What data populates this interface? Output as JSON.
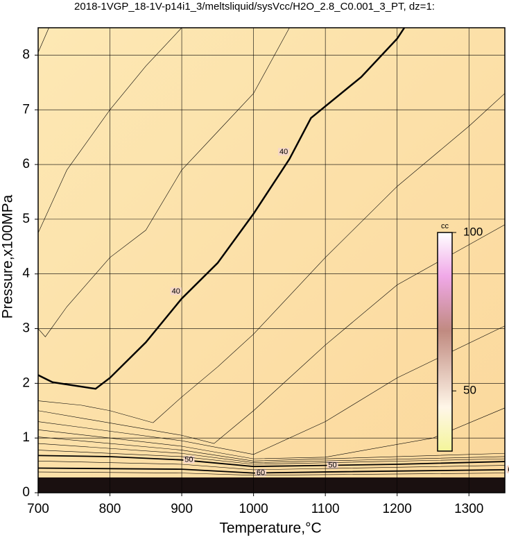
{
  "chart_data": {
    "type": "contour",
    "title": "2018-1VGP_18-1V-p14i1_3/meltsliquid/sysVcc/H2O_2.8_C0.001_3_PT, dz=1:",
    "xlabel": "Temperature,°C",
    "ylabel": "Pressure,x100MPa",
    "xlim": [
      700,
      1350
    ],
    "ylim": [
      0,
      8.5
    ],
    "xticks": [
      700,
      800,
      900,
      1000,
      1100,
      1200,
      1300
    ],
    "yticks": [
      0,
      1,
      2,
      3,
      4,
      5,
      6,
      7,
      8
    ],
    "grid": true,
    "colorbar": {
      "label": "cc",
      "lim": [
        31,
        100
      ],
      "ticks": [
        50,
        100
      ]
    },
    "contours": [
      {
        "level": 40,
        "x": [
          700,
          720,
          780,
          800,
          850,
          900,
          950,
          1000,
          1050,
          1080,
          1150,
          1200,
          1210
        ],
        "y": [
          2.15,
          2.02,
          1.9,
          2.1,
          2.75,
          3.55,
          4.2,
          5.1,
          6.1,
          6.85,
          7.6,
          8.3,
          8.5
        ]
      },
      {
        "level": 50,
        "x": [
          700,
          800,
          900,
          1000,
          1100,
          1200,
          1350
        ],
        "y": [
          0.68,
          0.66,
          0.6,
          0.48,
          0.5,
          0.52,
          0.57
        ]
      },
      {
        "level": 60,
        "x": [
          700,
          900,
          1000,
          1100,
          1350
        ],
        "y": [
          0.45,
          0.43,
          0.36,
          0.38,
          0.42
        ]
      },
      {
        "x": [
          700,
          715
        ],
        "y": [
          8.05,
          8.5
        ]
      },
      {
        "x": [
          700,
          740,
          800,
          850,
          900
        ],
        "y": [
          4.75,
          5.9,
          7.0,
          7.8,
          8.5
        ]
      },
      {
        "x": [
          700,
          710,
          740,
          800,
          850,
          900,
          950,
          1000,
          1050
        ],
        "y": [
          3.0,
          2.85,
          3.4,
          4.3,
          4.8,
          5.9,
          6.6,
          7.3,
          8.5
        ]
      },
      {
        "x": [
          860,
          900,
          950,
          1000,
          1100,
          1200,
          1300,
          1350
        ],
        "y": [
          1.28,
          1.75,
          2.3,
          2.9,
          4.3,
          5.6,
          6.7,
          7.3
        ]
      },
      {
        "x": [
          700,
          760,
          800,
          860
        ],
        "y": [
          1.68,
          1.6,
          1.5,
          1.28
        ]
      },
      {
        "x": [
          700,
          900,
          945,
          1000,
          1100,
          1200,
          1350
        ],
        "y": [
          1.5,
          1.05,
          0.9,
          1.5,
          2.7,
          3.8,
          4.9
        ]
      },
      {
        "x": [
          700,
          900,
          1000,
          1100,
          1200,
          1350
        ],
        "y": [
          1.3,
          0.95,
          0.7,
          1.3,
          2.1,
          3.05
        ]
      },
      {
        "x": [
          700,
          900,
          1000,
          1100,
          1250,
          1350
        ],
        "y": [
          1.15,
          0.85,
          0.62,
          0.65,
          1.0,
          1.55
        ]
      },
      {
        "x": [
          700,
          900,
          1000,
          1350
        ],
        "y": [
          1.02,
          0.78,
          0.58,
          0.72
        ]
      },
      {
        "x": [
          700,
          900,
          1000,
          1350
        ],
        "y": [
          0.9,
          0.72,
          0.55,
          0.66
        ]
      },
      {
        "x": [
          700,
          900,
          1000,
          1350
        ],
        "y": [
          0.78,
          0.66,
          0.52,
          0.62
        ]
      },
      {
        "x": [
          700,
          900,
          1000,
          1350
        ],
        "y": [
          0.58,
          0.52,
          0.42,
          0.5
        ]
      },
      {
        "x": [
          700,
          900,
          1000,
          1350
        ],
        "y": [
          0.38,
          0.36,
          0.32,
          0.36
        ]
      }
    ]
  }
}
